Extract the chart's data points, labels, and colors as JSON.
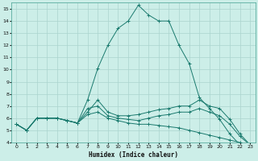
{
  "xlabel": "Humidex (Indice chaleur)",
  "bg_color": "#cceee8",
  "grid_color": "#aad4ce",
  "line_color": "#1a7a6e",
  "xlim": [
    -0.5,
    23.5
  ],
  "ylim": [
    4,
    15.5
  ],
  "xticks": [
    0,
    1,
    2,
    3,
    4,
    5,
    6,
    7,
    8,
    9,
    10,
    11,
    12,
    13,
    14,
    15,
    16,
    17,
    18,
    19,
    20,
    21,
    22,
    23
  ],
  "yticks": [
    4,
    5,
    6,
    7,
    8,
    9,
    10,
    11,
    12,
    13,
    14,
    15
  ],
  "line1_x": [
    0,
    1,
    2,
    3,
    4,
    5,
    6,
    7,
    8,
    9,
    10,
    11,
    12,
    13,
    14,
    15,
    16,
    17,
    18,
    19,
    20,
    21,
    22,
    23
  ],
  "line1_y": [
    5.5,
    5.0,
    6.0,
    6.0,
    6.0,
    5.8,
    5.6,
    7.5,
    10.1,
    12.0,
    13.4,
    14.0,
    15.3,
    14.5,
    14.0,
    14.0,
    12.0,
    10.5,
    7.7,
    6.8,
    5.9,
    4.7,
    3.8,
    3.8
  ],
  "line2_x": [
    0,
    1,
    2,
    3,
    4,
    5,
    6,
    7,
    8,
    9,
    10,
    11,
    12,
    13,
    14,
    15,
    16,
    17,
    18,
    19,
    20,
    21,
    22,
    23
  ],
  "line2_y": [
    5.5,
    5.0,
    6.0,
    6.0,
    6.0,
    5.8,
    5.6,
    6.5,
    7.5,
    6.5,
    6.2,
    6.2,
    6.3,
    6.5,
    6.7,
    6.8,
    7.0,
    7.0,
    7.5,
    7.0,
    6.8,
    5.9,
    4.7,
    3.8
  ],
  "line3_x": [
    0,
    1,
    2,
    3,
    4,
    5,
    6,
    7,
    8,
    9,
    10,
    11,
    12,
    13,
    14,
    15,
    16,
    17,
    18,
    19,
    20,
    21,
    22,
    23
  ],
  "line3_y": [
    5.5,
    5.0,
    6.0,
    6.0,
    6.0,
    5.8,
    5.6,
    6.3,
    6.5,
    6.0,
    5.8,
    5.6,
    5.5,
    5.5,
    5.4,
    5.3,
    5.2,
    5.0,
    4.8,
    4.6,
    4.4,
    4.2,
    4.0,
    3.8
  ],
  "line4_x": [
    0,
    1,
    2,
    3,
    4,
    5,
    6,
    7,
    8,
    9,
    10,
    11,
    12,
    13,
    14,
    15,
    16,
    17,
    18,
    19,
    20,
    21,
    22,
    23
  ],
  "line4_y": [
    5.5,
    5.0,
    6.0,
    6.0,
    6.0,
    5.8,
    5.6,
    6.8,
    7.0,
    6.2,
    6.0,
    5.9,
    5.8,
    6.0,
    6.2,
    6.3,
    6.5,
    6.5,
    6.8,
    6.5,
    6.2,
    5.5,
    4.5,
    3.8
  ]
}
